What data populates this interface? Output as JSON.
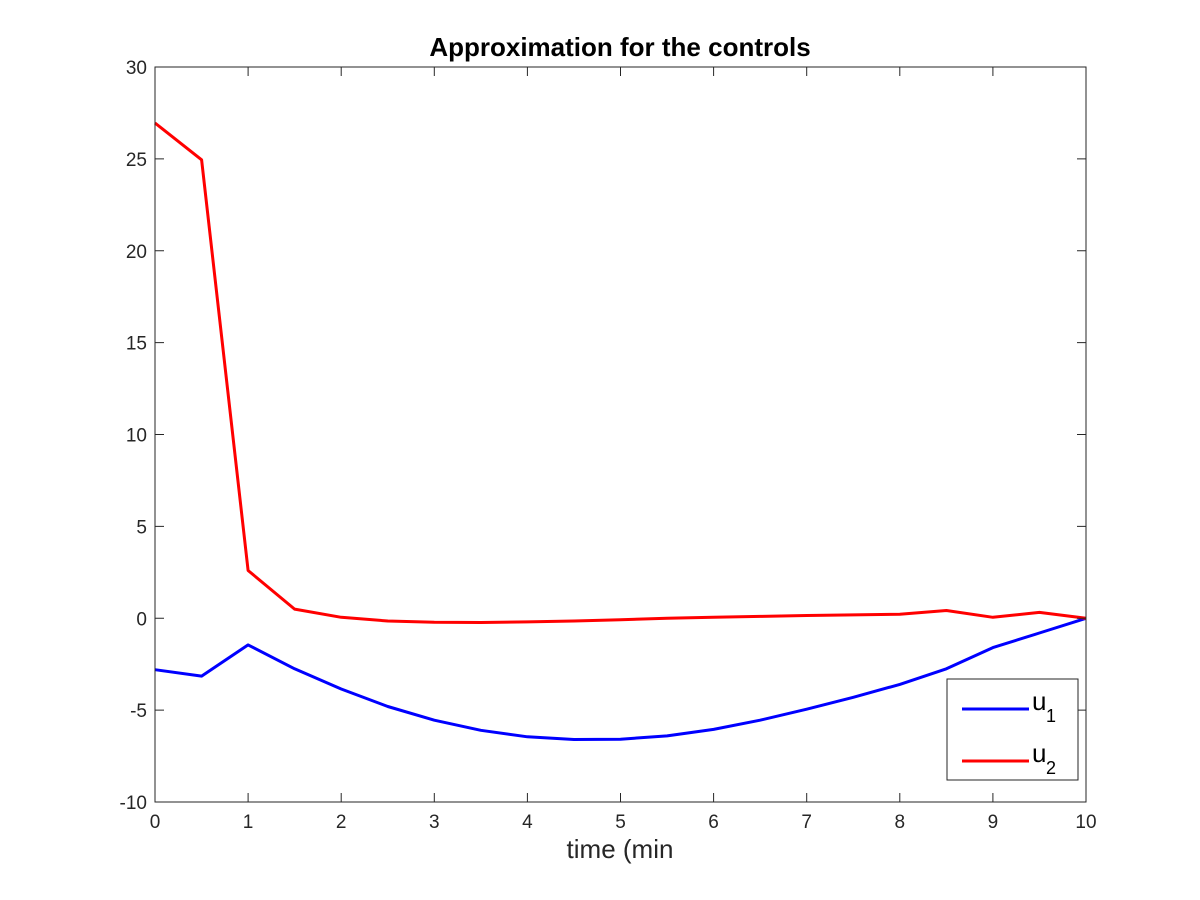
{
  "chart_data": {
    "type": "line",
    "title": "Approximation for the controls",
    "xlabel": "time (min",
    "ylabel": "",
    "xlim": [
      0,
      10
    ],
    "ylim": [
      -10,
      30
    ],
    "xticks": [
      0,
      1,
      2,
      3,
      4,
      5,
      6,
      7,
      8,
      9,
      10
    ],
    "yticks": [
      -10,
      -5,
      0,
      5,
      10,
      15,
      20,
      25,
      30
    ],
    "grid": false,
    "legend_position": "bottom-right",
    "x": [
      0,
      0.5,
      1,
      1.5,
      2,
      2.5,
      3,
      3.5,
      4,
      4.5,
      5,
      5.5,
      6,
      6.5,
      7,
      7.5,
      8,
      8.5,
      9,
      9.5,
      10
    ],
    "series": [
      {
        "name": "u",
        "subscript": "1",
        "color": "#0000ff",
        "values": [
          -2.8,
          -3.15,
          -1.45,
          -2.75,
          -3.85,
          -4.8,
          -5.55,
          -6.1,
          -6.45,
          -6.6,
          -6.58,
          -6.4,
          -6.05,
          -5.55,
          -4.95,
          -4.3,
          -3.6,
          -2.75,
          -1.6,
          -0.8,
          0
        ]
      },
      {
        "name": "u",
        "subscript": "2",
        "color": "#ff0000",
        "values": [
          26.95,
          24.95,
          2.6,
          0.5,
          0.05,
          -0.15,
          -0.22,
          -0.23,
          -0.2,
          -0.15,
          -0.08,
          0.0,
          0.05,
          0.1,
          0.15,
          0.18,
          0.22,
          0.42,
          0.05,
          0.32,
          0
        ]
      }
    ]
  }
}
